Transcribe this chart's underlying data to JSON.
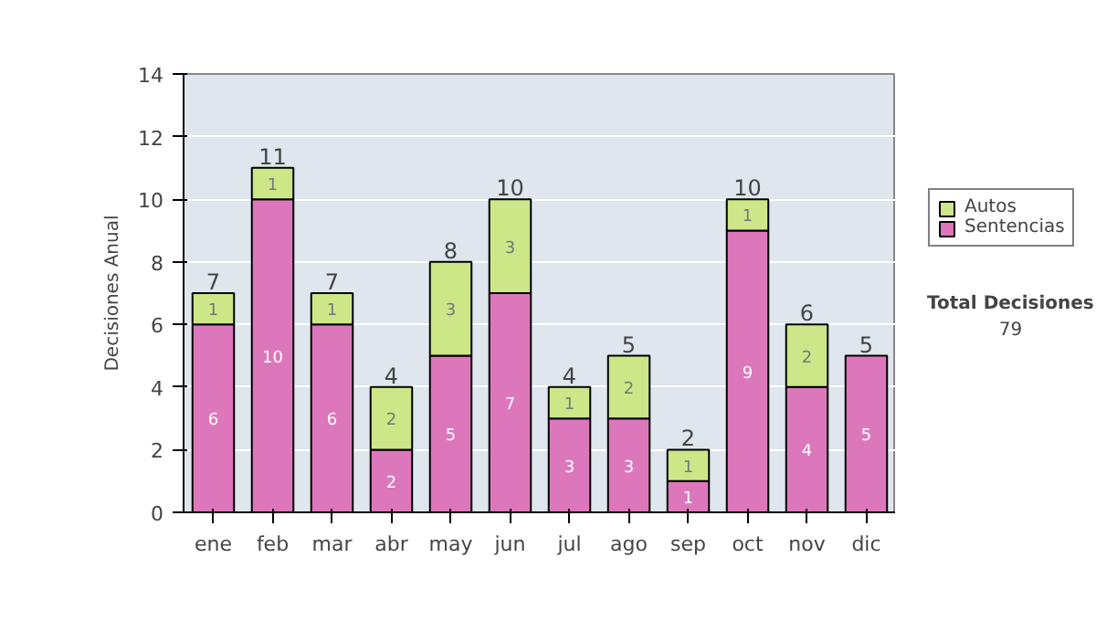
{
  "chart_data": {
    "type": "bar",
    "stacked": true,
    "ylabel": "Decisiones Anual",
    "categories": [
      "ene",
      "feb",
      "mar",
      "abr",
      "may",
      "jun",
      "jul",
      "ago",
      "sep",
      "oct",
      "nov",
      "dic"
    ],
    "series": [
      {
        "name": "Sentencias",
        "color": "#dd77bb",
        "values": [
          6,
          10,
          6,
          2,
          5,
          7,
          3,
          3,
          1,
          9,
          4,
          5
        ],
        "value_labels": [
          "6",
          "10",
          "6",
          "2",
          "5",
          "7",
          "3",
          "3",
          "1",
          "9",
          "4",
          "5"
        ]
      },
      {
        "name": "Autos",
        "color": "#cce688",
        "values": [
          1,
          1,
          1,
          2,
          3,
          3,
          1,
          2,
          1,
          1,
          2,
          0
        ],
        "value_labels": [
          "1",
          "1",
          "1",
          "2",
          "3",
          "3",
          "1",
          "2",
          "1",
          "1",
          "2",
          null
        ]
      }
    ],
    "totals": [
      "7",
      "11",
      "7",
      "4",
      "8",
      "10",
      "4",
      "5",
      "2",
      "10",
      "6",
      "5"
    ],
    "ylim": [
      0,
      14
    ],
    "yticks": [
      0,
      2,
      4,
      6,
      8,
      10,
      12,
      14
    ],
    "grid": "y",
    "legend": "right",
    "annotations": [
      "Total Decisiones",
      "79"
    ]
  }
}
